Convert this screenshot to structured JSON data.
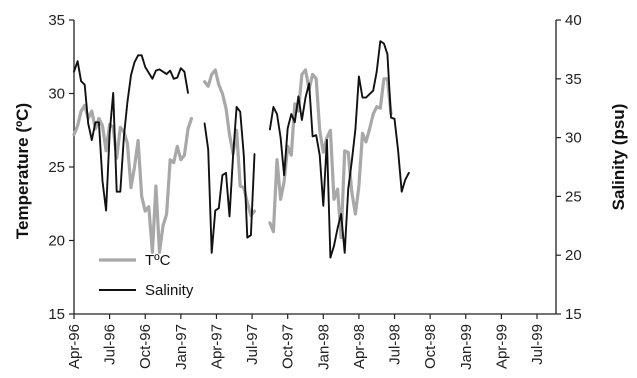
{
  "chart_data": {
    "type": "line",
    "ylabel_left": "Temperature (ºC)",
    "ylabel_right": "Salinity (psu)",
    "ylim_left": [
      15,
      35
    ],
    "ylim_right": [
      15,
      40
    ],
    "yticks_left": [
      15,
      20,
      25,
      30,
      35
    ],
    "yticks_right": [
      15,
      20,
      25,
      30,
      35,
      40
    ],
    "x_index_range": [
      0,
      40.6
    ],
    "xticks": [
      {
        "i": 0,
        "label": "Apr-96"
      },
      {
        "i": 3,
        "label": "Jul-96"
      },
      {
        "i": 6,
        "label": "Oct-96"
      },
      {
        "i": 9,
        "label": "Jan-97"
      },
      {
        "i": 12,
        "label": "Apr-97"
      },
      {
        "i": 15,
        "label": "Jul-97"
      },
      {
        "i": 18,
        "label": "Oct-97"
      },
      {
        "i": 21,
        "label": "Jan-98"
      },
      {
        "i": 24,
        "label": "Apr-98"
      },
      {
        "i": 27,
        "label": "Jul-98"
      },
      {
        "i": 30,
        "label": "Oct-98"
      },
      {
        "i": 33,
        "label": "Jan-99"
      },
      {
        "i": 36,
        "label": "Apr-99"
      },
      {
        "i": 39,
        "label": "Jul-99"
      }
    ],
    "legend": {
      "placement": "lower-left",
      "entries": [
        "TºC",
        "Salinity"
      ]
    },
    "series": [
      {
        "name": "TºC",
        "axis": "left",
        "color": "#a8a8a8",
        "segments": [
          [
            [
              0.0,
              27.2
            ],
            [
              0.3,
              27.8
            ],
            [
              0.6,
              28.8
            ],
            [
              0.9,
              29.2
            ],
            [
              1.2,
              28.3
            ],
            [
              1.5,
              28.8
            ],
            [
              1.8,
              27.6
            ],
            [
              2.1,
              28.3
            ],
            [
              2.4,
              27.8
            ],
            [
              2.7,
              26.1
            ],
            [
              3.0,
              27.9
            ],
            [
              3.3,
              27.7
            ],
            [
              3.6,
              25.6
            ],
            [
              3.9,
              27.7
            ],
            [
              4.2,
              27.4
            ],
            [
              4.5,
              26.6
            ],
            [
              4.8,
              23.6
            ],
            [
              5.1,
              25.0
            ],
            [
              5.4,
              26.8
            ],
            [
              5.7,
              23.0
            ],
            [
              6.0,
              22.0
            ],
            [
              6.3,
              22.3
            ],
            [
              6.6,
              19.2
            ],
            [
              6.9,
              23.7
            ],
            [
              7.2,
              19.2
            ],
            [
              7.5,
              21.0
            ],
            [
              7.8,
              21.8
            ],
            [
              8.1,
              25.5
            ],
            [
              8.4,
              25.3
            ],
            [
              8.7,
              26.4
            ],
            [
              9.0,
              25.5
            ],
            [
              9.3,
              25.8
            ],
            [
              9.6,
              27.6
            ],
            [
              9.9,
              28.3
            ]
          ],
          [
            [
              11.0,
              30.8
            ],
            [
              11.3,
              30.5
            ],
            [
              11.6,
              31.3
            ],
            [
              11.9,
              31.6
            ],
            [
              12.2,
              30.6
            ],
            [
              12.5,
              30.0
            ],
            [
              12.8,
              29.0
            ],
            [
              13.1,
              27.2
            ],
            [
              13.4,
              25.9
            ],
            [
              13.7,
              27.5
            ],
            [
              14.0,
              23.7
            ],
            [
              14.3,
              23.6
            ],
            [
              14.6,
              22.6
            ],
            [
              14.9,
              21.7
            ],
            [
              15.2,
              22.0
            ]
          ],
          [
            [
              16.5,
              21.2
            ],
            [
              16.8,
              20.6
            ],
            [
              17.1,
              25.5
            ],
            [
              17.4,
              22.8
            ],
            [
              17.7,
              24.0
            ],
            [
              18.0,
              26.4
            ],
            [
              18.3,
              25.8
            ],
            [
              18.6,
              29.3
            ],
            [
              18.9,
              28.8
            ],
            [
              19.2,
              31.3
            ],
            [
              19.5,
              31.6
            ],
            [
              19.8,
              30.3
            ],
            [
              20.1,
              31.3
            ],
            [
              20.4,
              31.0
            ],
            [
              20.7,
              27.5
            ],
            [
              21.0,
              26.0
            ],
            [
              21.3,
              27.0
            ],
            [
              21.6,
              27.5
            ],
            [
              21.9,
              22.8
            ],
            [
              22.2,
              23.5
            ],
            [
              22.5,
              20.2
            ],
            [
              22.8,
              26.1
            ],
            [
              23.1,
              26.0
            ],
            [
              23.4,
              23.3
            ],
            [
              23.7,
              21.8
            ],
            [
              24.0,
              23.7
            ],
            [
              24.3,
              27.3
            ],
            [
              24.6,
              26.7
            ],
            [
              24.9,
              27.6
            ],
            [
              25.2,
              28.6
            ],
            [
              25.5,
              29.1
            ],
            [
              25.8,
              29.0
            ],
            [
              26.1,
              31.0
            ],
            [
              26.4,
              31.0
            ],
            [
              26.7,
              28.6
            ]
          ]
        ]
      },
      {
        "name": "Salinity",
        "axis": "right",
        "color": "#111111",
        "segments": [
          [
            [
              0.0,
              35.6
            ],
            [
              0.3,
              36.5
            ],
            [
              0.6,
              34.8
            ],
            [
              0.9,
              34.5
            ],
            [
              1.2,
              31.2
            ],
            [
              1.5,
              29.8
            ],
            [
              1.8,
              31.3
            ],
            [
              2.1,
              31.3
            ],
            [
              2.4,
              26.3
            ],
            [
              2.7,
              23.8
            ],
            [
              3.0,
              30.3
            ],
            [
              3.3,
              33.8
            ],
            [
              3.6,
              25.4
            ],
            [
              3.9,
              25.4
            ],
            [
              4.2,
              30.1
            ],
            [
              4.5,
              33.0
            ],
            [
              4.8,
              35.3
            ],
            [
              5.1,
              36.4
            ],
            [
              5.4,
              37.0
            ],
            [
              5.7,
              37.0
            ],
            [
              6.0,
              36.0
            ],
            [
              6.3,
              35.5
            ],
            [
              6.6,
              35.0
            ],
            [
              6.9,
              35.7
            ],
            [
              7.2,
              35.8
            ],
            [
              7.5,
              35.6
            ],
            [
              7.8,
              35.4
            ],
            [
              8.1,
              35.7
            ],
            [
              8.4,
              35.0
            ],
            [
              8.7,
              35.1
            ],
            [
              9.0,
              35.9
            ],
            [
              9.3,
              35.6
            ],
            [
              9.6,
              33.8
            ]
          ],
          [
            [
              11.0,
              31.2
            ],
            [
              11.3,
              29.0
            ],
            [
              11.6,
              20.2
            ],
            [
              11.9,
              23.8
            ],
            [
              12.2,
              24.0
            ],
            [
              12.5,
              26.8
            ],
            [
              12.8,
              27.0
            ],
            [
              13.1,
              23.3
            ],
            [
              13.4,
              28.5
            ],
            [
              13.7,
              32.6
            ],
            [
              14.0,
              32.2
            ],
            [
              14.3,
              28.5
            ],
            [
              14.6,
              21.5
            ],
            [
              14.9,
              21.7
            ],
            [
              15.2,
              28.6
            ]
          ],
          [
            [
              16.5,
              30.7
            ],
            [
              16.8,
              32.6
            ],
            [
              17.1,
              32.0
            ],
            [
              17.4,
              30.0
            ],
            [
              17.7,
              26.8
            ],
            [
              18.0,
              30.8
            ],
            [
              18.3,
              32.0
            ],
            [
              18.6,
              31.3
            ],
            [
              18.9,
              33.5
            ],
            [
              19.2,
              31.5
            ],
            [
              19.5,
              33.4
            ],
            [
              19.8,
              34.6
            ],
            [
              20.1,
              30.1
            ],
            [
              20.4,
              30.2
            ],
            [
              20.7,
              28.5
            ],
            [
              21.0,
              24.2
            ],
            [
              21.3,
              29.8
            ],
            [
              21.6,
              19.8
            ],
            [
              21.9,
              20.8
            ],
            [
              22.2,
              22.3
            ],
            [
              22.5,
              23.5
            ],
            [
              22.8,
              20.2
            ],
            [
              23.1,
              25.6
            ],
            [
              23.4,
              28.0
            ],
            [
              23.7,
              30.7
            ],
            [
              24.0,
              35.2
            ],
            [
              24.3,
              33.4
            ],
            [
              24.6,
              33.4
            ],
            [
              24.9,
              33.7
            ],
            [
              25.2,
              34.0
            ],
            [
              25.5,
              35.6
            ],
            [
              25.8,
              38.2
            ],
            [
              26.1,
              38.0
            ],
            [
              26.4,
              37.1
            ],
            [
              26.7,
              31.7
            ],
            [
              27.0,
              31.6
            ],
            [
              27.3,
              28.9
            ],
            [
              27.6,
              25.4
            ],
            [
              27.9,
              26.4
            ],
            [
              28.2,
              27.0
            ]
          ]
        ]
      }
    ]
  }
}
